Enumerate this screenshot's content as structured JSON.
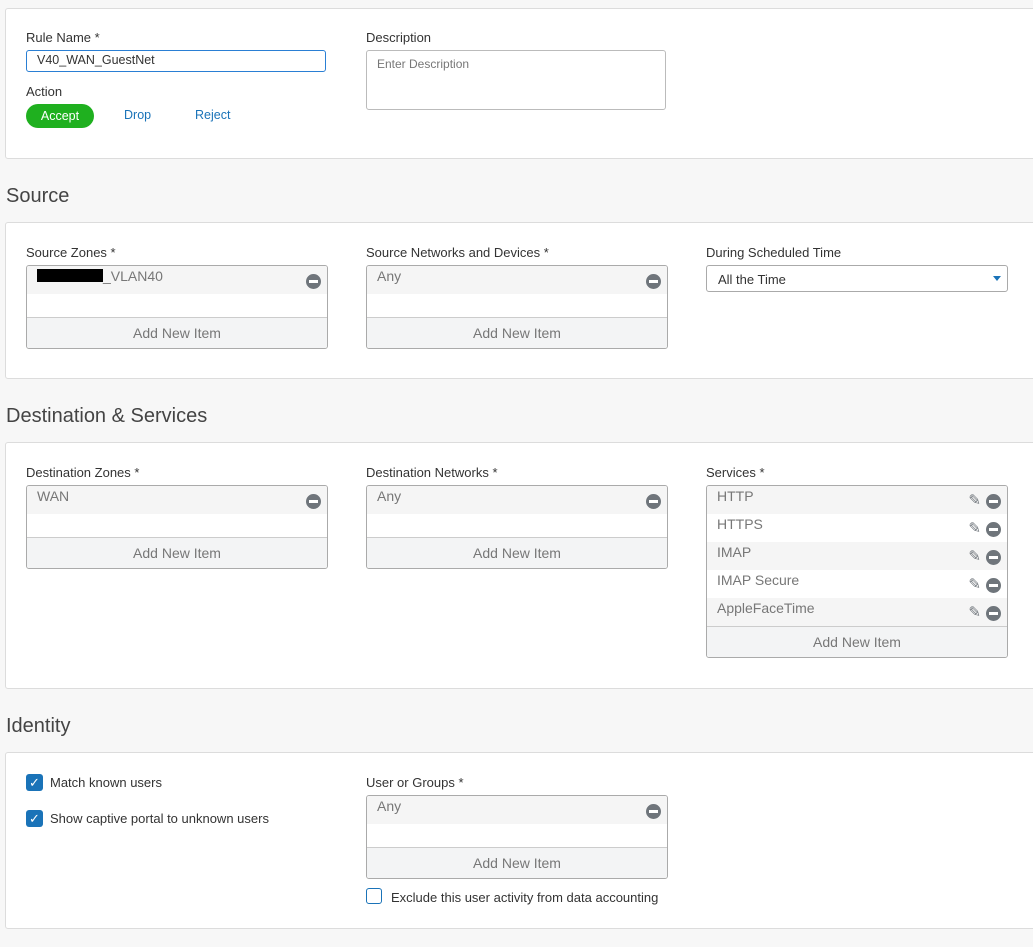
{
  "rule": {
    "name_label": "Rule Name *",
    "name_value": "V40_WAN_GuestNet",
    "description_label": "Description",
    "description_placeholder": "Enter Description",
    "action_label": "Action",
    "actions": [
      "Accept",
      "Drop",
      "Reject"
    ],
    "selected_action": "Accept"
  },
  "source": {
    "heading": "Source",
    "zones_label": "Source Zones *",
    "zones": [
      "_VLAN40"
    ],
    "networks_label": "Source Networks and Devices *",
    "networks": [
      "Any"
    ],
    "schedule_label": "During Scheduled Time",
    "schedule_value": "All the Time",
    "add_label": "Add New Item"
  },
  "destination": {
    "heading": "Destination & Services",
    "zones_label": "Destination Zones *",
    "zones": [
      "WAN"
    ],
    "networks_label": "Destination Networks *",
    "networks": [
      "Any"
    ],
    "services_label": "Services *",
    "services": [
      "HTTP",
      "HTTPS",
      "IMAP",
      "IMAP Secure",
      "AppleFaceTime"
    ],
    "add_label": "Add New Item"
  },
  "identity": {
    "heading": "Identity",
    "match_known": "Match known users",
    "match_known_checked": true,
    "captive_portal": "Show captive portal to unknown users",
    "captive_portal_checked": true,
    "users_label": "User or Groups *",
    "users": [
      "Any"
    ],
    "exclude_label": "Exclude this user activity from data accounting",
    "exclude_checked": false,
    "add_label": "Add New Item"
  },
  "colors": {
    "accent": "#1a73b8",
    "accept": "#1fb01f"
  }
}
